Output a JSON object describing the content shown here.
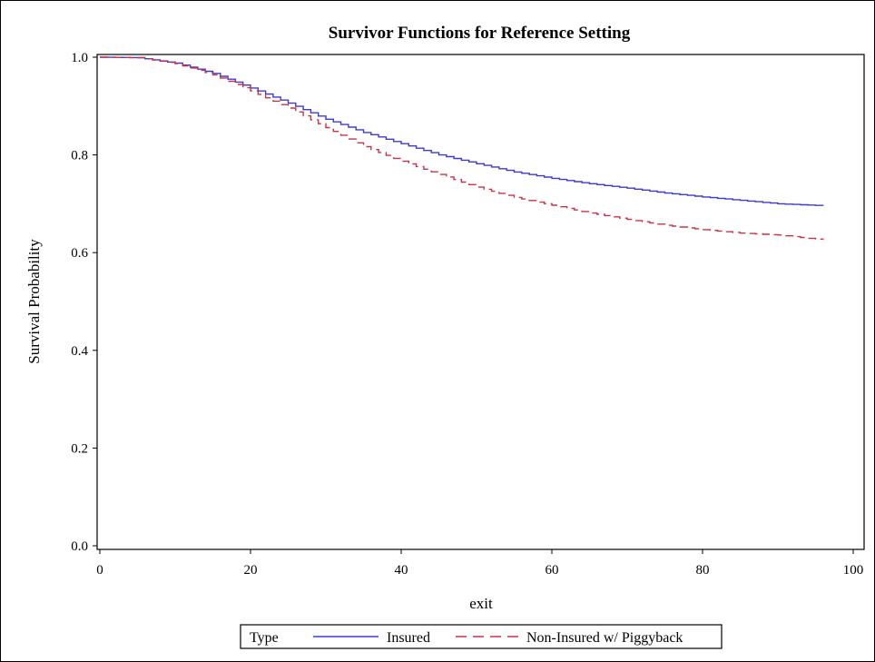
{
  "chart_data": {
    "type": "line",
    "title": "Survivor Functions for Reference Setting",
    "xlabel": "exit",
    "ylabel": "Survival Probability",
    "xlim": [
      0,
      100
    ],
    "ylim": [
      0,
      1
    ],
    "xticks": [
      "0",
      "20",
      "40",
      "60",
      "80",
      "100"
    ],
    "yticks": [
      "0.0",
      "0.2",
      "0.4",
      "0.6",
      "0.8",
      "1.0"
    ],
    "xtick_values": [
      0,
      20,
      40,
      60,
      80,
      100
    ],
    "ytick_values": [
      0,
      0.2,
      0.4,
      0.6,
      0.8,
      1.0
    ],
    "grid": false,
    "step": true,
    "legend": {
      "title": "Type",
      "position": "bottom"
    },
    "series": [
      {
        "name": "Insured",
        "color": "#3b3bd4",
        "dash": "solid",
        "x": [
          0,
          5,
          10,
          15,
          20,
          25,
          30,
          35,
          40,
          45,
          50,
          55,
          60,
          65,
          70,
          75,
          80,
          85,
          90,
          96
        ],
        "y": [
          1.0,
          0.999,
          0.988,
          0.967,
          0.937,
          0.906,
          0.873,
          0.846,
          0.823,
          0.8,
          0.782,
          0.765,
          0.752,
          0.741,
          0.732,
          0.722,
          0.714,
          0.707,
          0.7,
          0.696
        ]
      },
      {
        "name": "Non-Insured w/ Piggyback",
        "color": "#c8334a",
        "dash": "dashed",
        "x": [
          0,
          5,
          10,
          15,
          20,
          25,
          30,
          35,
          40,
          45,
          50,
          55,
          60,
          65,
          70,
          75,
          80,
          85,
          90,
          96
        ],
        "y": [
          1.0,
          0.999,
          0.987,
          0.964,
          0.931,
          0.896,
          0.856,
          0.817,
          0.787,
          0.76,
          0.734,
          0.713,
          0.697,
          0.681,
          0.668,
          0.656,
          0.647,
          0.64,
          0.636,
          0.626
        ]
      }
    ]
  }
}
